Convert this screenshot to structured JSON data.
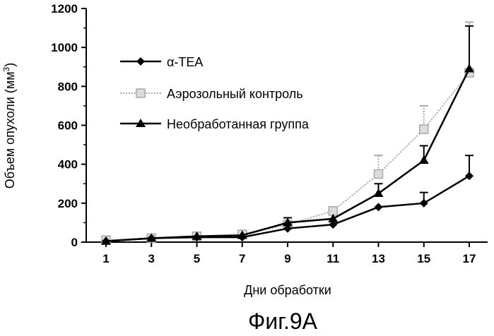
{
  "chart_data": {
    "type": "line",
    "title": "",
    "xlabel": "Дни обработки",
    "ylabel_prefix": "Объем опухоли (мм",
    "ylabel_sup": "3",
    "ylabel_suffix": ")",
    "caption": "Фиг.9А",
    "x": [
      1,
      3,
      5,
      7,
      9,
      11,
      13,
      15,
      17
    ],
    "xticks": [
      "1",
      "3",
      "5",
      "7",
      "9",
      "11",
      "13",
      "15",
      "17"
    ],
    "yticks": [
      "0",
      "200",
      "400",
      "600",
      "800",
      "1000",
      "1200"
    ],
    "ylim": [
      0,
      1200
    ],
    "grid": false,
    "legend_position": "top-left",
    "series": [
      {
        "name": "α-TEA",
        "marker": "diamond",
        "line_style": "solid",
        "color": "#000000",
        "values": [
          5,
          20,
          25,
          25,
          70,
          90,
          180,
          200,
          340
        ],
        "errors": [
          0,
          0,
          0,
          0,
          0,
          0,
          0,
          55,
          105
        ]
      },
      {
        "name": "Аэрозольный контроль",
        "marker": "square",
        "line_style": "dotted",
        "color": "#a8a8a8",
        "values": [
          10,
          20,
          30,
          40,
          90,
          160,
          350,
          580,
          870
        ],
        "errors": [
          0,
          0,
          0,
          0,
          0,
          0,
          95,
          120,
          260
        ]
      },
      {
        "name": "Необработанная группа",
        "marker": "triangle",
        "line_style": "solid",
        "color": "#000000",
        "values": [
          5,
          20,
          30,
          35,
          100,
          120,
          250,
          420,
          890
        ],
        "errors": [
          0,
          0,
          0,
          0,
          25,
          0,
          50,
          75,
          220
        ]
      }
    ]
  }
}
